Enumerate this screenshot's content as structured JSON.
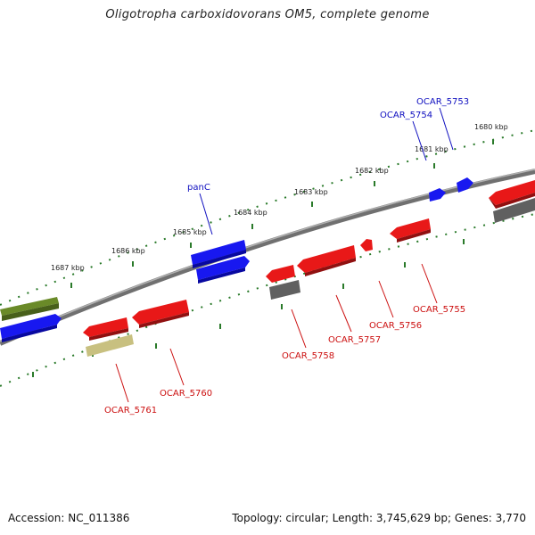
{
  "title": "Oligotropha carboxidovorans OM5, complete genome",
  "footer": {
    "accession": "Accession: NC_011386",
    "stats": "Topology: circular; Length: 3,745,629 bp; Genes: 3,770"
  },
  "tick_labels": [
    "1687 kbp",
    "1686 kbp",
    "1685 kbp",
    "1684 kbp",
    "1683 kbp",
    "1682 kbp",
    "1681 kbp",
    "1680 kbp"
  ],
  "gene_labels": {
    "ocar5753": "OCAR_5753",
    "ocar5754": "OCAR_5754",
    "panC": "panC",
    "ocar5755": "OCAR_5755",
    "ocar5756": "OCAR_5756",
    "ocar5757": "OCAR_5757",
    "ocar5758": "OCAR_5758",
    "ocar5760": "OCAR_5760",
    "ocar5761": "OCAR_5761"
  },
  "colors": {
    "forward_gene": "#1010e8",
    "reverse_gene": "#e01818",
    "pseudo_gene": "#606060",
    "green_feature": "#5a7a20",
    "khaki_feature": "#c8c080",
    "backbone": "#808080",
    "tick_dots": "#2a7a2a",
    "forward_label": "#1010c0",
    "reverse_label": "#cc1010"
  }
}
